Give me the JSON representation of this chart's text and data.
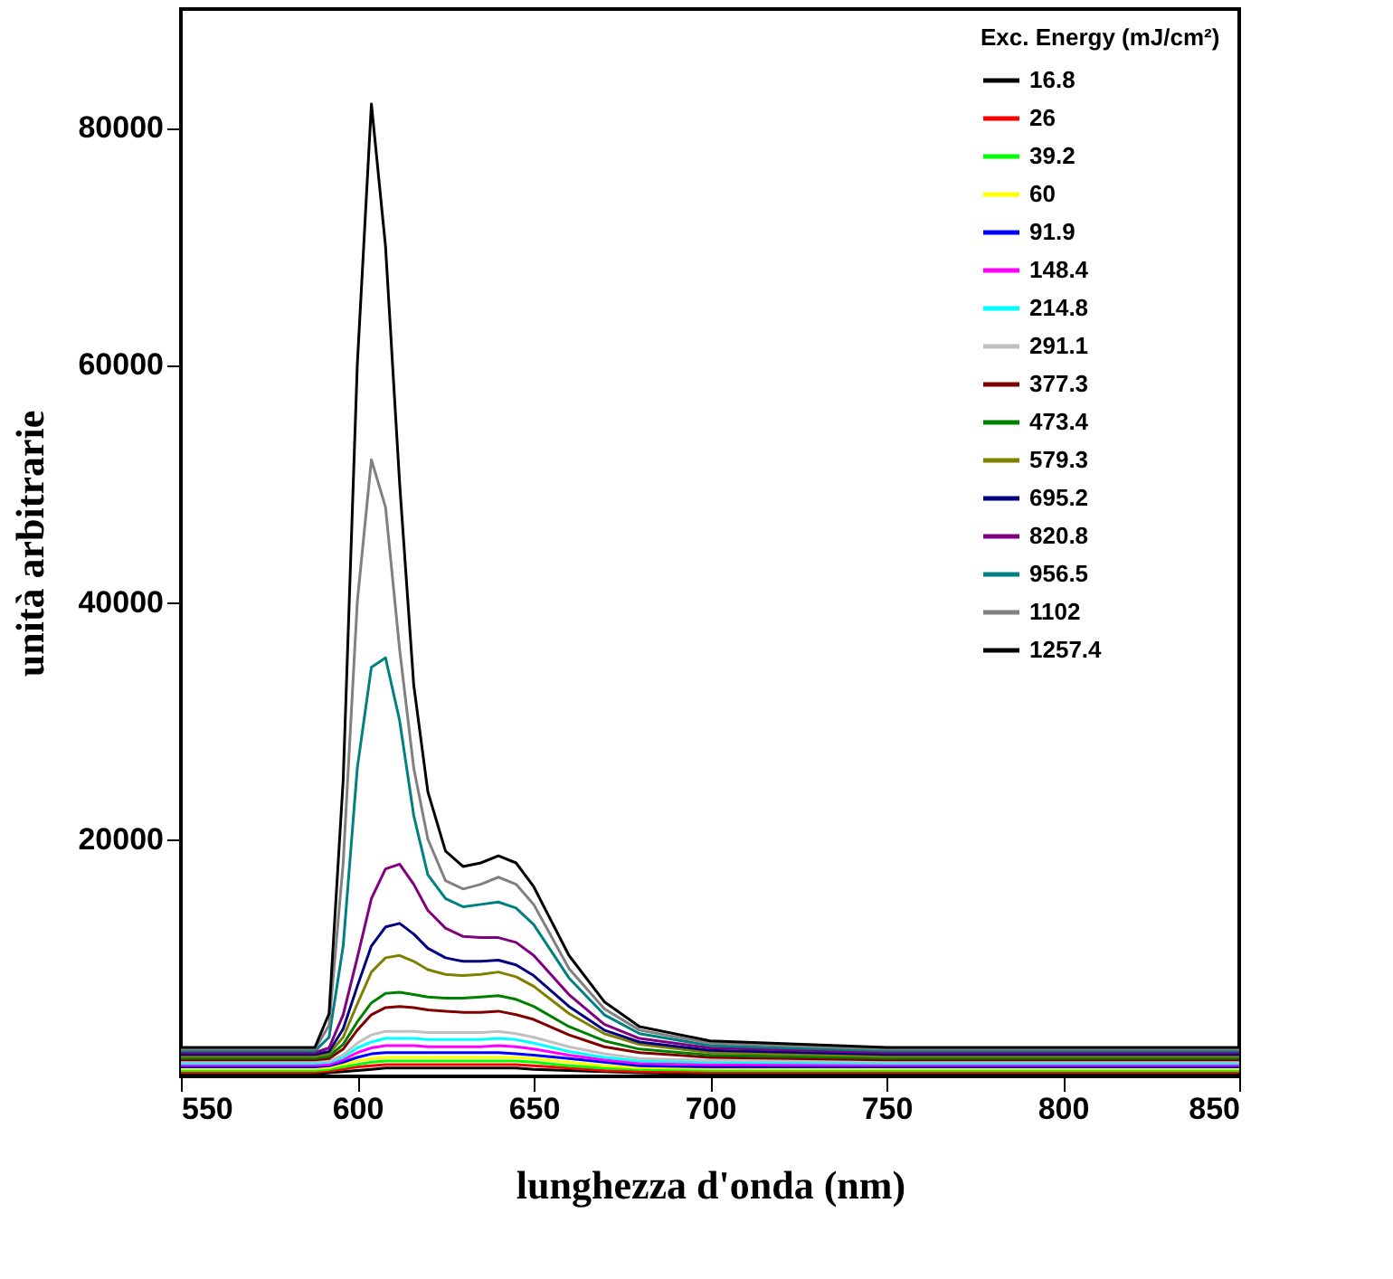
{
  "chart_data": {
    "type": "line",
    "xlabel": "lunghezza d'onda (nm)",
    "ylabel": "unità arbitrarie",
    "legend_title": "Exc. Energy (mJ/cm²)",
    "legend": "top right",
    "grid": false,
    "marker": "none",
    "line_style": "solid",
    "xlim": [
      550,
      850
    ],
    "xticks": [
      550,
      600,
      650,
      700,
      750,
      800,
      850
    ],
    "ylim": [
      0,
      90000
    ],
    "yticks": [
      20000,
      40000,
      60000,
      80000
    ],
    "x": [
      550,
      580,
      588,
      592,
      596,
      600,
      604,
      608,
      612,
      616,
      620,
      625,
      630,
      635,
      640,
      645,
      650,
      660,
      670,
      680,
      700,
      750,
      800,
      850
    ],
    "series": [
      {
        "name": "16.8",
        "color": "#000000",
        "values": [
          200,
          200,
          200,
          300,
          400,
          500,
          600,
          700,
          700,
          700,
          700,
          700,
          700,
          700,
          700,
          700,
          600,
          500,
          400,
          300,
          200,
          200,
          200,
          200
        ]
      },
      {
        "name": "26",
        "color": "#ff0000",
        "values": [
          350,
          350,
          350,
          450,
          600,
          800,
          900,
          1000,
          1000,
          1000,
          1000,
          1000,
          1000,
          1000,
          1000,
          1000,
          900,
          700,
          500,
          400,
          350,
          350,
          350,
          350
        ]
      },
      {
        "name": "39.2",
        "color": "#00ff00",
        "values": [
          500,
          500,
          500,
          600,
          800,
          1000,
          1200,
          1300,
          1300,
          1300,
          1300,
          1300,
          1300,
          1300,
          1300,
          1300,
          1200,
          900,
          700,
          600,
          500,
          500,
          500,
          500
        ]
      },
      {
        "name": "60",
        "color": "#ffff00",
        "values": [
          650,
          650,
          650,
          750,
          1000,
          1300,
          1500,
          1600,
          1600,
          1600,
          1600,
          1600,
          1600,
          1600,
          1600,
          1600,
          1500,
          1200,
          900,
          750,
          650,
          650,
          650,
          650
        ]
      },
      {
        "name": "91.9",
        "color": "#0000ff",
        "values": [
          800,
          800,
          800,
          900,
          1200,
          1600,
          1900,
          2000,
          2000,
          2000,
          2000,
          2000,
          2000,
          2000,
          2000,
          1900,
          1800,
          1500,
          1200,
          900,
          800,
          800,
          800,
          800
        ]
      },
      {
        "name": "148.4",
        "color": "#ff00ff",
        "values": [
          950,
          950,
          950,
          1000,
          1400,
          2000,
          2400,
          2600,
          2600,
          2600,
          2500,
          2500,
          2500,
          2500,
          2600,
          2500,
          2300,
          1800,
          1400,
          1100,
          1000,
          950,
          950,
          950
        ]
      },
      {
        "name": "214.8",
        "color": "#00ffff",
        "values": [
          1100,
          1100,
          1100,
          1200,
          1600,
          2400,
          2900,
          3200,
          3200,
          3200,
          3100,
          3100,
          3100,
          3100,
          3200,
          3100,
          2800,
          2100,
          1600,
          1300,
          1200,
          1100,
          1100,
          1100
        ]
      },
      {
        "name": "291.1",
        "color": "#c0c0c0",
        "values": [
          1250,
          1250,
          1250,
          1300,
          1800,
          2800,
          3500,
          3800,
          3800,
          3800,
          3700,
          3700,
          3700,
          3700,
          3800,
          3600,
          3300,
          2500,
          1900,
          1500,
          1350,
          1250,
          1250,
          1250
        ]
      },
      {
        "name": "377.3",
        "color": "#800000",
        "values": [
          1400,
          1400,
          1400,
          1500,
          2300,
          3900,
          5200,
          5800,
          5900,
          5800,
          5600,
          5500,
          5400,
          5400,
          5500,
          5200,
          4800,
          3500,
          2500,
          2000,
          1600,
          1400,
          1400,
          1400
        ]
      },
      {
        "name": "473.4",
        "color": "#008000",
        "values": [
          1550,
          1550,
          1550,
          1700,
          2700,
          4600,
          6200,
          7000,
          7100,
          6900,
          6700,
          6600,
          6600,
          6700,
          6800,
          6500,
          5900,
          4200,
          3000,
          2300,
          1800,
          1550,
          1550,
          1550
        ]
      },
      {
        "name": "579.3",
        "color": "#808000",
        "values": [
          1700,
          1700,
          1700,
          1900,
          3300,
          6100,
          8800,
          10000,
          10200,
          9700,
          9000,
          8600,
          8500,
          8600,
          8800,
          8400,
          7600,
          5300,
          3600,
          2700,
          2000,
          1700,
          1700,
          1700
        ]
      },
      {
        "name": "695.2",
        "color": "#000080",
        "values": [
          1850,
          1850,
          1850,
          2100,
          4000,
          7600,
          11000,
          12600,
          12900,
          12000,
          10800,
          10000,
          9700,
          9700,
          9800,
          9400,
          8500,
          5900,
          3900,
          2900,
          2200,
          1850,
          1850,
          1850
        ]
      },
      {
        "name": "820.8",
        "color": "#800080",
        "values": [
          2000,
          2000,
          2000,
          2400,
          5200,
          10000,
          15000,
          17500,
          17900,
          16200,
          14000,
          12500,
          11800,
          11700,
          11700,
          11300,
          10200,
          6900,
          4400,
          3200,
          2400,
          2000,
          2000,
          2000
        ]
      },
      {
        "name": "956.5",
        "color": "#008080",
        "values": [
          2150,
          2150,
          2150,
          3300,
          11000,
          26000,
          34500,
          35300,
          30000,
          22000,
          17000,
          15000,
          14300,
          14500,
          14700,
          14200,
          12800,
          8300,
          5200,
          3600,
          2600,
          2150,
          2150,
          2150
        ]
      },
      {
        "name": "1102",
        "color": "#808080",
        "values": [
          2300,
          2300,
          2300,
          4300,
          18000,
          40000,
          52000,
          48000,
          36000,
          26000,
          20000,
          16500,
          15800,
          16200,
          16800,
          16200,
          14500,
          9100,
          5700,
          3900,
          2800,
          2300,
          2300,
          2300
        ]
      },
      {
        "name": "1257.4",
        "color": "#000000",
        "values": [
          2450,
          2450,
          2450,
          5300,
          25000,
          60000,
          82000,
          70000,
          50000,
          33000,
          24000,
          19000,
          17700,
          18000,
          18600,
          18000,
          16000,
          10200,
          6300,
          4200,
          3000,
          2450,
          2450,
          2450
        ]
      }
    ]
  }
}
